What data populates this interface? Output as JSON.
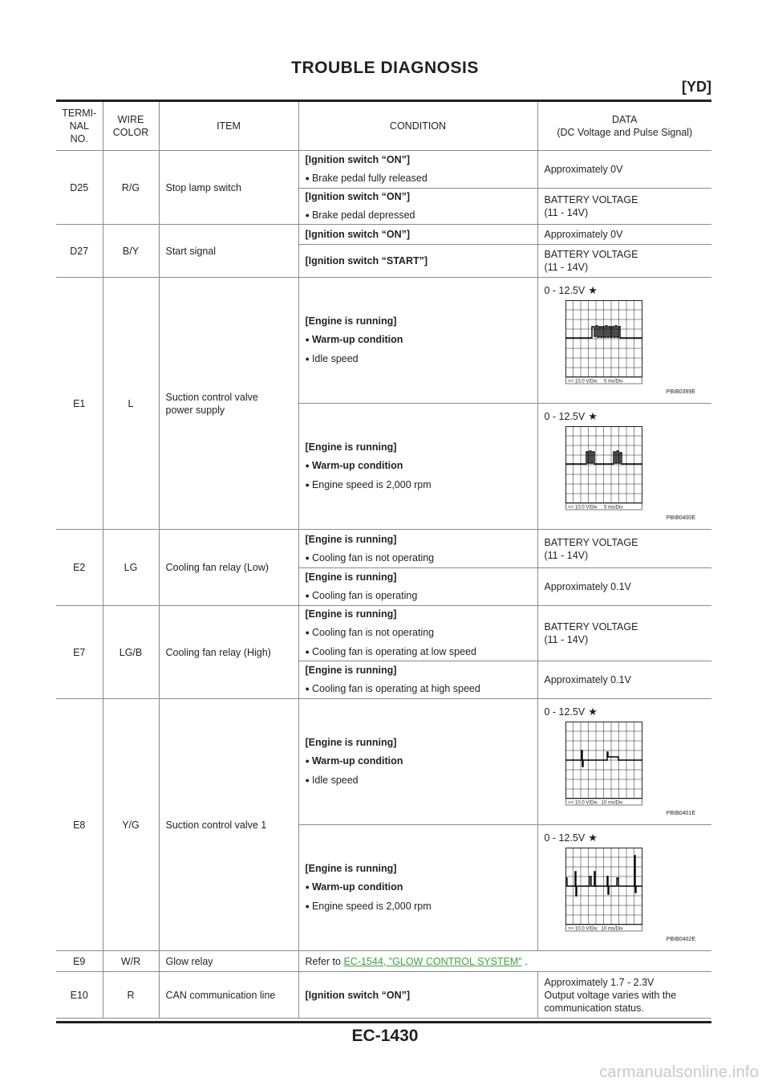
{
  "header": {
    "title": "TROUBLE DIAGNOSIS",
    "subtitle": "[YD]"
  },
  "table": {
    "columns": [
      "TERMI-\nNAL\nNO.",
      "WIRE\nCOLOR",
      "ITEM",
      "CONDITION",
      "DATA\n(DC Voltage and Pulse Signal)"
    ],
    "rows": {
      "d25": {
        "terminal": "D25",
        "color": "R/G",
        "item": "Stop lamp switch",
        "c1": {
          "head": "[Ignition switch “ON”]",
          "b1": "Brake pedal fully released",
          "data": "Approximately 0V"
        },
        "c2": {
          "head": "[Ignition switch “ON”]",
          "b1": "Brake pedal depressed",
          "data1": "BATTERY VOLTAGE",
          "data2": "(11 - 14V)"
        }
      },
      "d27": {
        "terminal": "D27",
        "color": "B/Y",
        "item": "Start signal",
        "c1": {
          "head": "[Ignition switch “ON”]",
          "data": "Approximately 0V"
        },
        "c2": {
          "head": "[Ignition switch “START”]",
          "data1": "BATTERY VOLTAGE",
          "data2": "(11 - 14V)"
        }
      },
      "e1": {
        "terminal": "E1",
        "color": "L",
        "item1": "Suction control valve",
        "item2": "power supply",
        "c1": {
          "head": "[Engine is running]",
          "b1": "Warm-up condition",
          "b2": "Idle speed",
          "volt": "0 - 12.5V",
          "fig": "PBIB0399E",
          "scale": "10.0 V/Div     5 ms/Div"
        },
        "c2": {
          "head": "[Engine is running]",
          "b1": "Warm-up condition",
          "b2": "Engine speed is 2,000 rpm",
          "volt": "0 - 12.5V",
          "fig": "PBIB0400E",
          "scale": "10.0 V/Div     5 ms/Div"
        }
      },
      "e2": {
        "terminal": "E2",
        "color": "LG",
        "item": "Cooling fan relay (Low)",
        "c1": {
          "head": "[Engine is running]",
          "b1": "Cooling fan is not operating",
          "data1": "BATTERY VOLTAGE",
          "data2": "(11 - 14V)"
        },
        "c2": {
          "head": "[Engine is running]",
          "b1": "Cooling fan is operating",
          "data": "Approximately 0.1V"
        }
      },
      "e7": {
        "terminal": "E7",
        "color": "LG/B",
        "item": "Cooling fan relay (High)",
        "c1": {
          "head": "[Engine is running]",
          "b1": "Cooling fan is not operating",
          "b2": "Cooling fan is operating at low speed",
          "data1": "BATTERY VOLTAGE",
          "data2": "(11 - 14V)"
        },
        "c2": {
          "head": "[Engine is running]",
          "b1": "Cooling fan is operating at high speed",
          "data": "Approximately 0.1V"
        }
      },
      "e8": {
        "terminal": "E8",
        "color": "Y/G",
        "item": "Suction control valve 1",
        "c1": {
          "head": "[Engine is running]",
          "b1": "Warm-up condition",
          "b2": "Idle speed",
          "volt": "0 - 12.5V",
          "fig": "PBIB0401E",
          "scale": "10.0 V/Div   10 ms/Div"
        },
        "c2": {
          "head": "[Engine is running]",
          "b1": "Warm-up condition",
          "b2": "Engine speed is 2,000 rpm",
          "volt": "0 - 12.5V",
          "fig": "PBIB0402E",
          "scale": "10.0 V/Div   10 ms/Div"
        }
      },
      "e9": {
        "terminal": "E9",
        "color": "W/R",
        "item": "Glow relay",
        "refer": "Refer to ",
        "link": "EC-1544, \"GLOW CONTROL SYSTEM\"",
        "tail": " ."
      },
      "e10": {
        "terminal": "E10",
        "color": "R",
        "item": "CAN communication line",
        "head": "[Ignition switch “ON”]",
        "data1": "Approximately 1.7 - 2.3V",
        "data2": "Output voltage varies with the",
        "data3": "communication status."
      }
    }
  },
  "footer": {
    "page": "EC-1430",
    "watermark": "carmanualsonline.info"
  },
  "icons": {
    "star": "star-icon",
    "bullet": "bullet-icon"
  }
}
